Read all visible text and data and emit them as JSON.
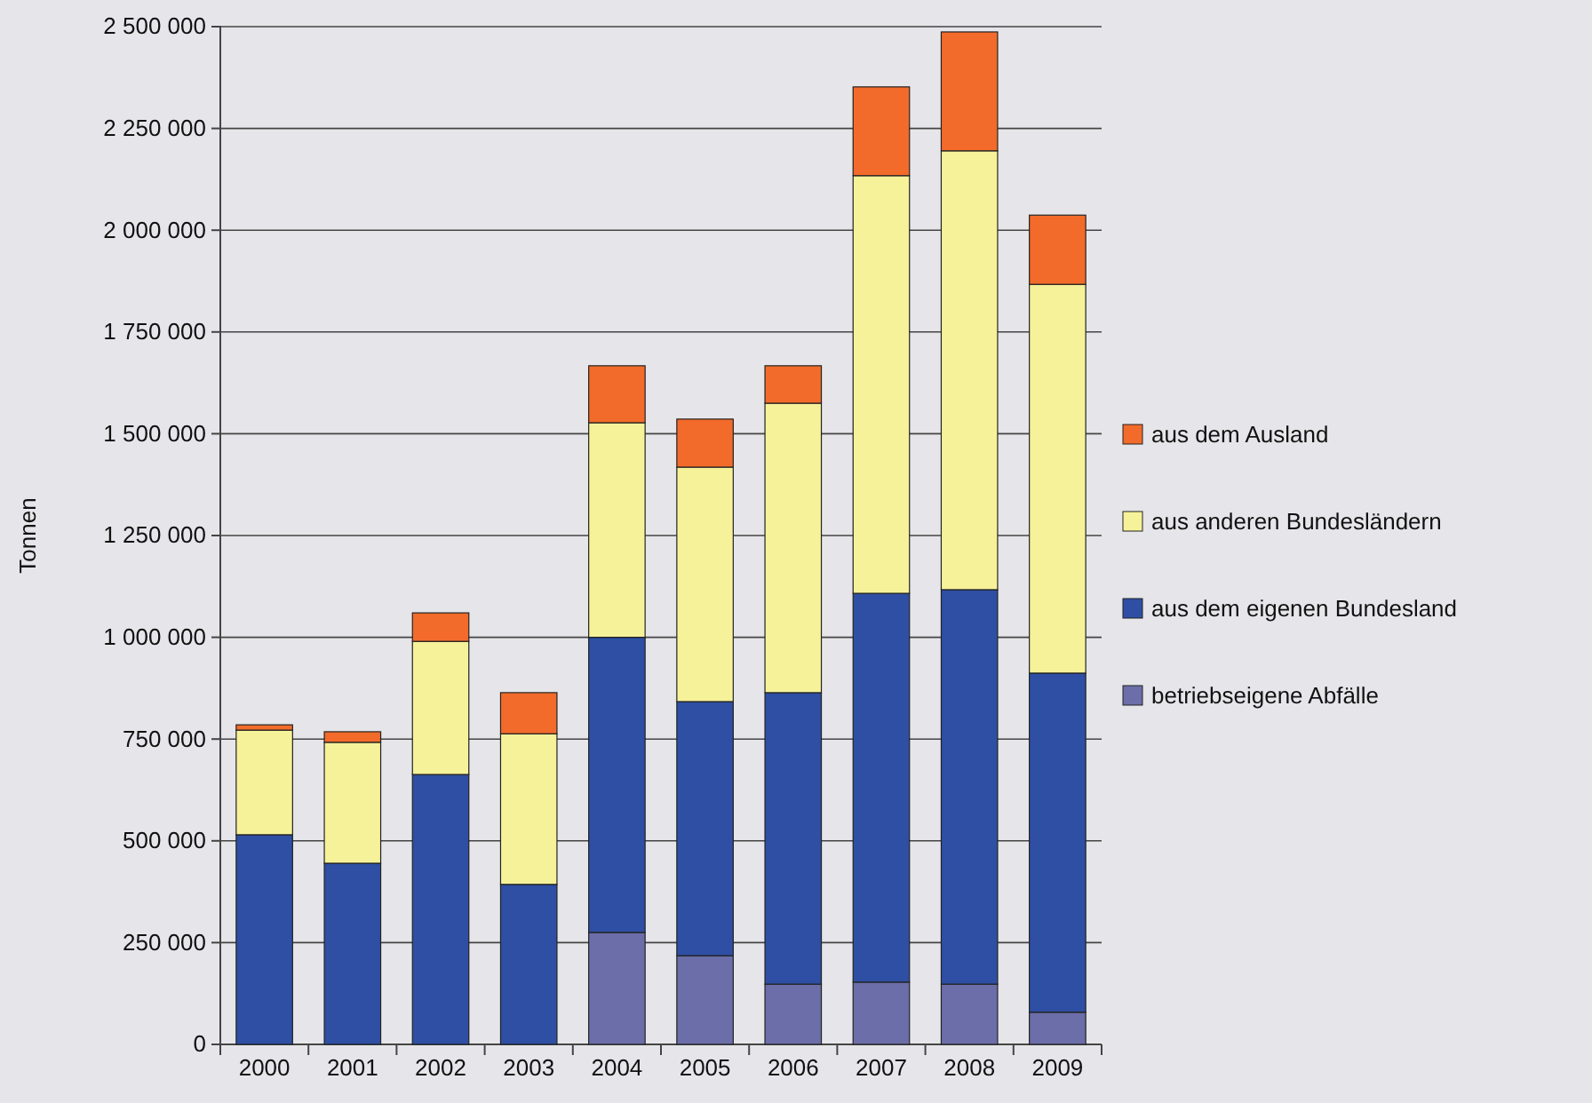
{
  "chart_data": {
    "type": "bar",
    "stacked": true,
    "ylabel": "Tonnen",
    "categories": [
      "2000",
      "2001",
      "2002",
      "2003",
      "2004",
      "2005",
      "2006",
      "2007",
      "2008",
      "2009"
    ],
    "series": [
      {
        "name": "betriebseigene Abfälle",
        "color": "#6b6ea8",
        "values": [
          0,
          0,
          0,
          0,
          275000,
          218000,
          148000,
          153000,
          148000,
          79000
        ]
      },
      {
        "name": "aus dem eigenen Bundesland",
        "color": "#2e4fa3",
        "values": [
          515000,
          445000,
          663000,
          393000,
          725000,
          624000,
          716000,
          955000,
          969000,
          833000
        ]
      },
      {
        "name": "aus anderen Bundesländern",
        "color": "#f6f29a",
        "values": [
          257000,
          297000,
          327000,
          370000,
          527000,
          576000,
          711000,
          1026000,
          1078000,
          955000
        ]
      },
      {
        "name": "aus dem Ausland",
        "color": "#f26b2a",
        "values": [
          13000,
          26000,
          70000,
          101000,
          140000,
          118000,
          92000,
          218000,
          292000,
          170000
        ]
      }
    ],
    "ylim": [
      0,
      2500000
    ],
    "yticks": [
      0,
      {
        "value": 250000,
        "label": "250 000"
      },
      {
        "value": 500000,
        "label": "500 000"
      },
      {
        "value": 750000,
        "label": "750 000"
      },
      {
        "value": 1000000,
        "label": "1 000 000"
      },
      {
        "value": 1250000,
        "label": "1 250 000"
      },
      {
        "value": 1500000,
        "label": "1 500 000"
      },
      {
        "value": 1750000,
        "label": "1 750 000"
      },
      {
        "value": 2000000,
        "label": "2 000 000"
      },
      {
        "value": 2250000,
        "label": "2 250 000"
      },
      {
        "value": 2500000,
        "label": "2 500 000"
      }
    ],
    "grid": "y",
    "legend": "right"
  }
}
